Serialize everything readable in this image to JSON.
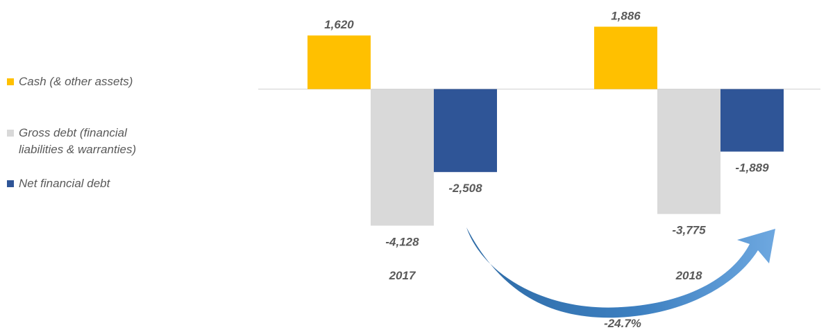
{
  "chart_data": {
    "type": "bar",
    "categories": [
      "2017",
      "2018"
    ],
    "series": [
      {
        "name": "Cash (& other assets)",
        "color": "#FFC000",
        "values": [
          1620,
          1886
        ],
        "labels": [
          "1,620",
          "1,886"
        ]
      },
      {
        "name": "Gross debt (financial liabilities & warranties)",
        "color": "#D9D9D9",
        "values": [
          -4128,
          -3775
        ],
        "labels": [
          "-4,128",
          "-3,775"
        ]
      },
      {
        "name": "Net financial debt",
        "color": "#2F5597",
        "values": [
          -2508,
          -1889
        ],
        "labels": [
          "-2,508",
          "-1,889"
        ]
      }
    ],
    "ylim": [
      -4128,
      1886
    ],
    "grid": false,
    "legend": "left",
    "annotation": {
      "text": "-24.7%",
      "from": "2017",
      "to": "2018",
      "series": "Net financial debt",
      "color": "#5B9BD5"
    },
    "legend_lines": [
      [
        "Cash (& other assets)"
      ],
      [
        "Gross debt (financial",
        "liabilities & warranties)"
      ],
      [
        "Net financial debt"
      ]
    ]
  }
}
